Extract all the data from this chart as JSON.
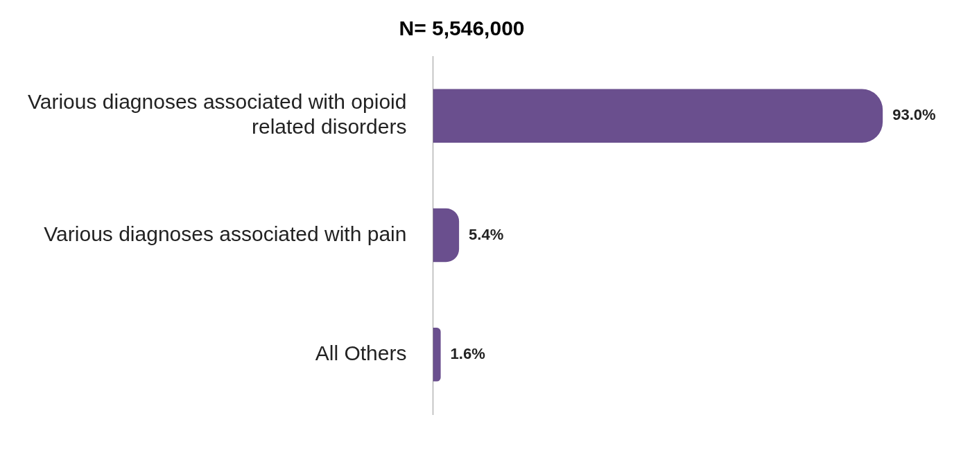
{
  "chart_data": {
    "type": "bar",
    "orientation": "horizontal",
    "title": "N= 5,546,000",
    "categories": [
      "Various diagnoses associated with opioid related disorders",
      "Various diagnoses associated with pain",
      "All Others"
    ],
    "values": [
      93.0,
      5.4,
      1.6
    ],
    "color": "#6a4f8e",
    "value_labels": [
      "93.0%",
      "5.4%",
      "1.6%"
    ],
    "grid": false,
    "legend": false,
    "tick_labels": "y"
  }
}
